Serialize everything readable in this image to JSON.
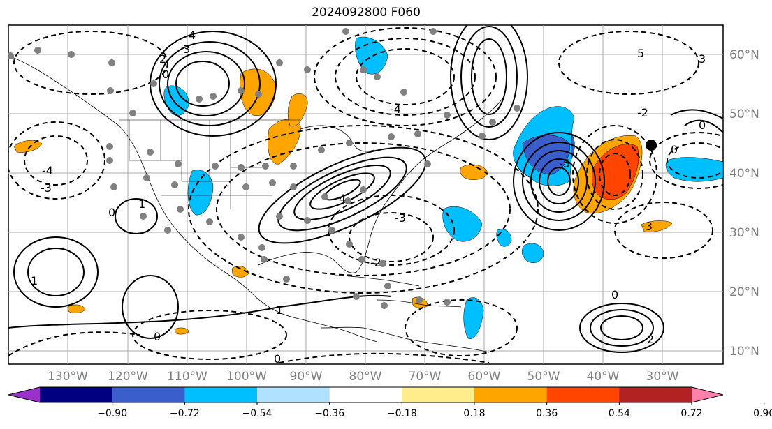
{
  "title": "2024092800 F060",
  "lon_labels": [
    "130°W",
    "120°W",
    "110°W",
    "100°W",
    "90°W",
    "80°W",
    "70°W",
    "60°W",
    "50°W",
    "40°W",
    "30°W"
  ],
  "lat_labels": [
    "60°N",
    "50°N",
    "40°N",
    "30°N",
    "20°N",
    "10°N"
  ],
  "colorbar": {
    "colors": [
      "#9932cc",
      "#000080",
      "#3a5fcd",
      "#00bfff",
      "#b0e2ff",
      "#ffffff",
      "#ffec8b",
      "#ffa500",
      "#ff4500",
      "#b22222",
      "#ff82ab"
    ],
    "tick_labels": [
      "−0.90",
      "−0.72",
      "−0.54",
      "−0.36",
      "−0.18",
      "0.18",
      "0.36",
      "0.54",
      "0.72",
      "0.90"
    ]
  },
  "contour_labels": [
    "3",
    "4",
    "2",
    "0",
    "1",
    "-1",
    "-2",
    "-3",
    "-4",
    "-5",
    "5",
    "0"
  ],
  "marker": "storm-center-dot"
}
